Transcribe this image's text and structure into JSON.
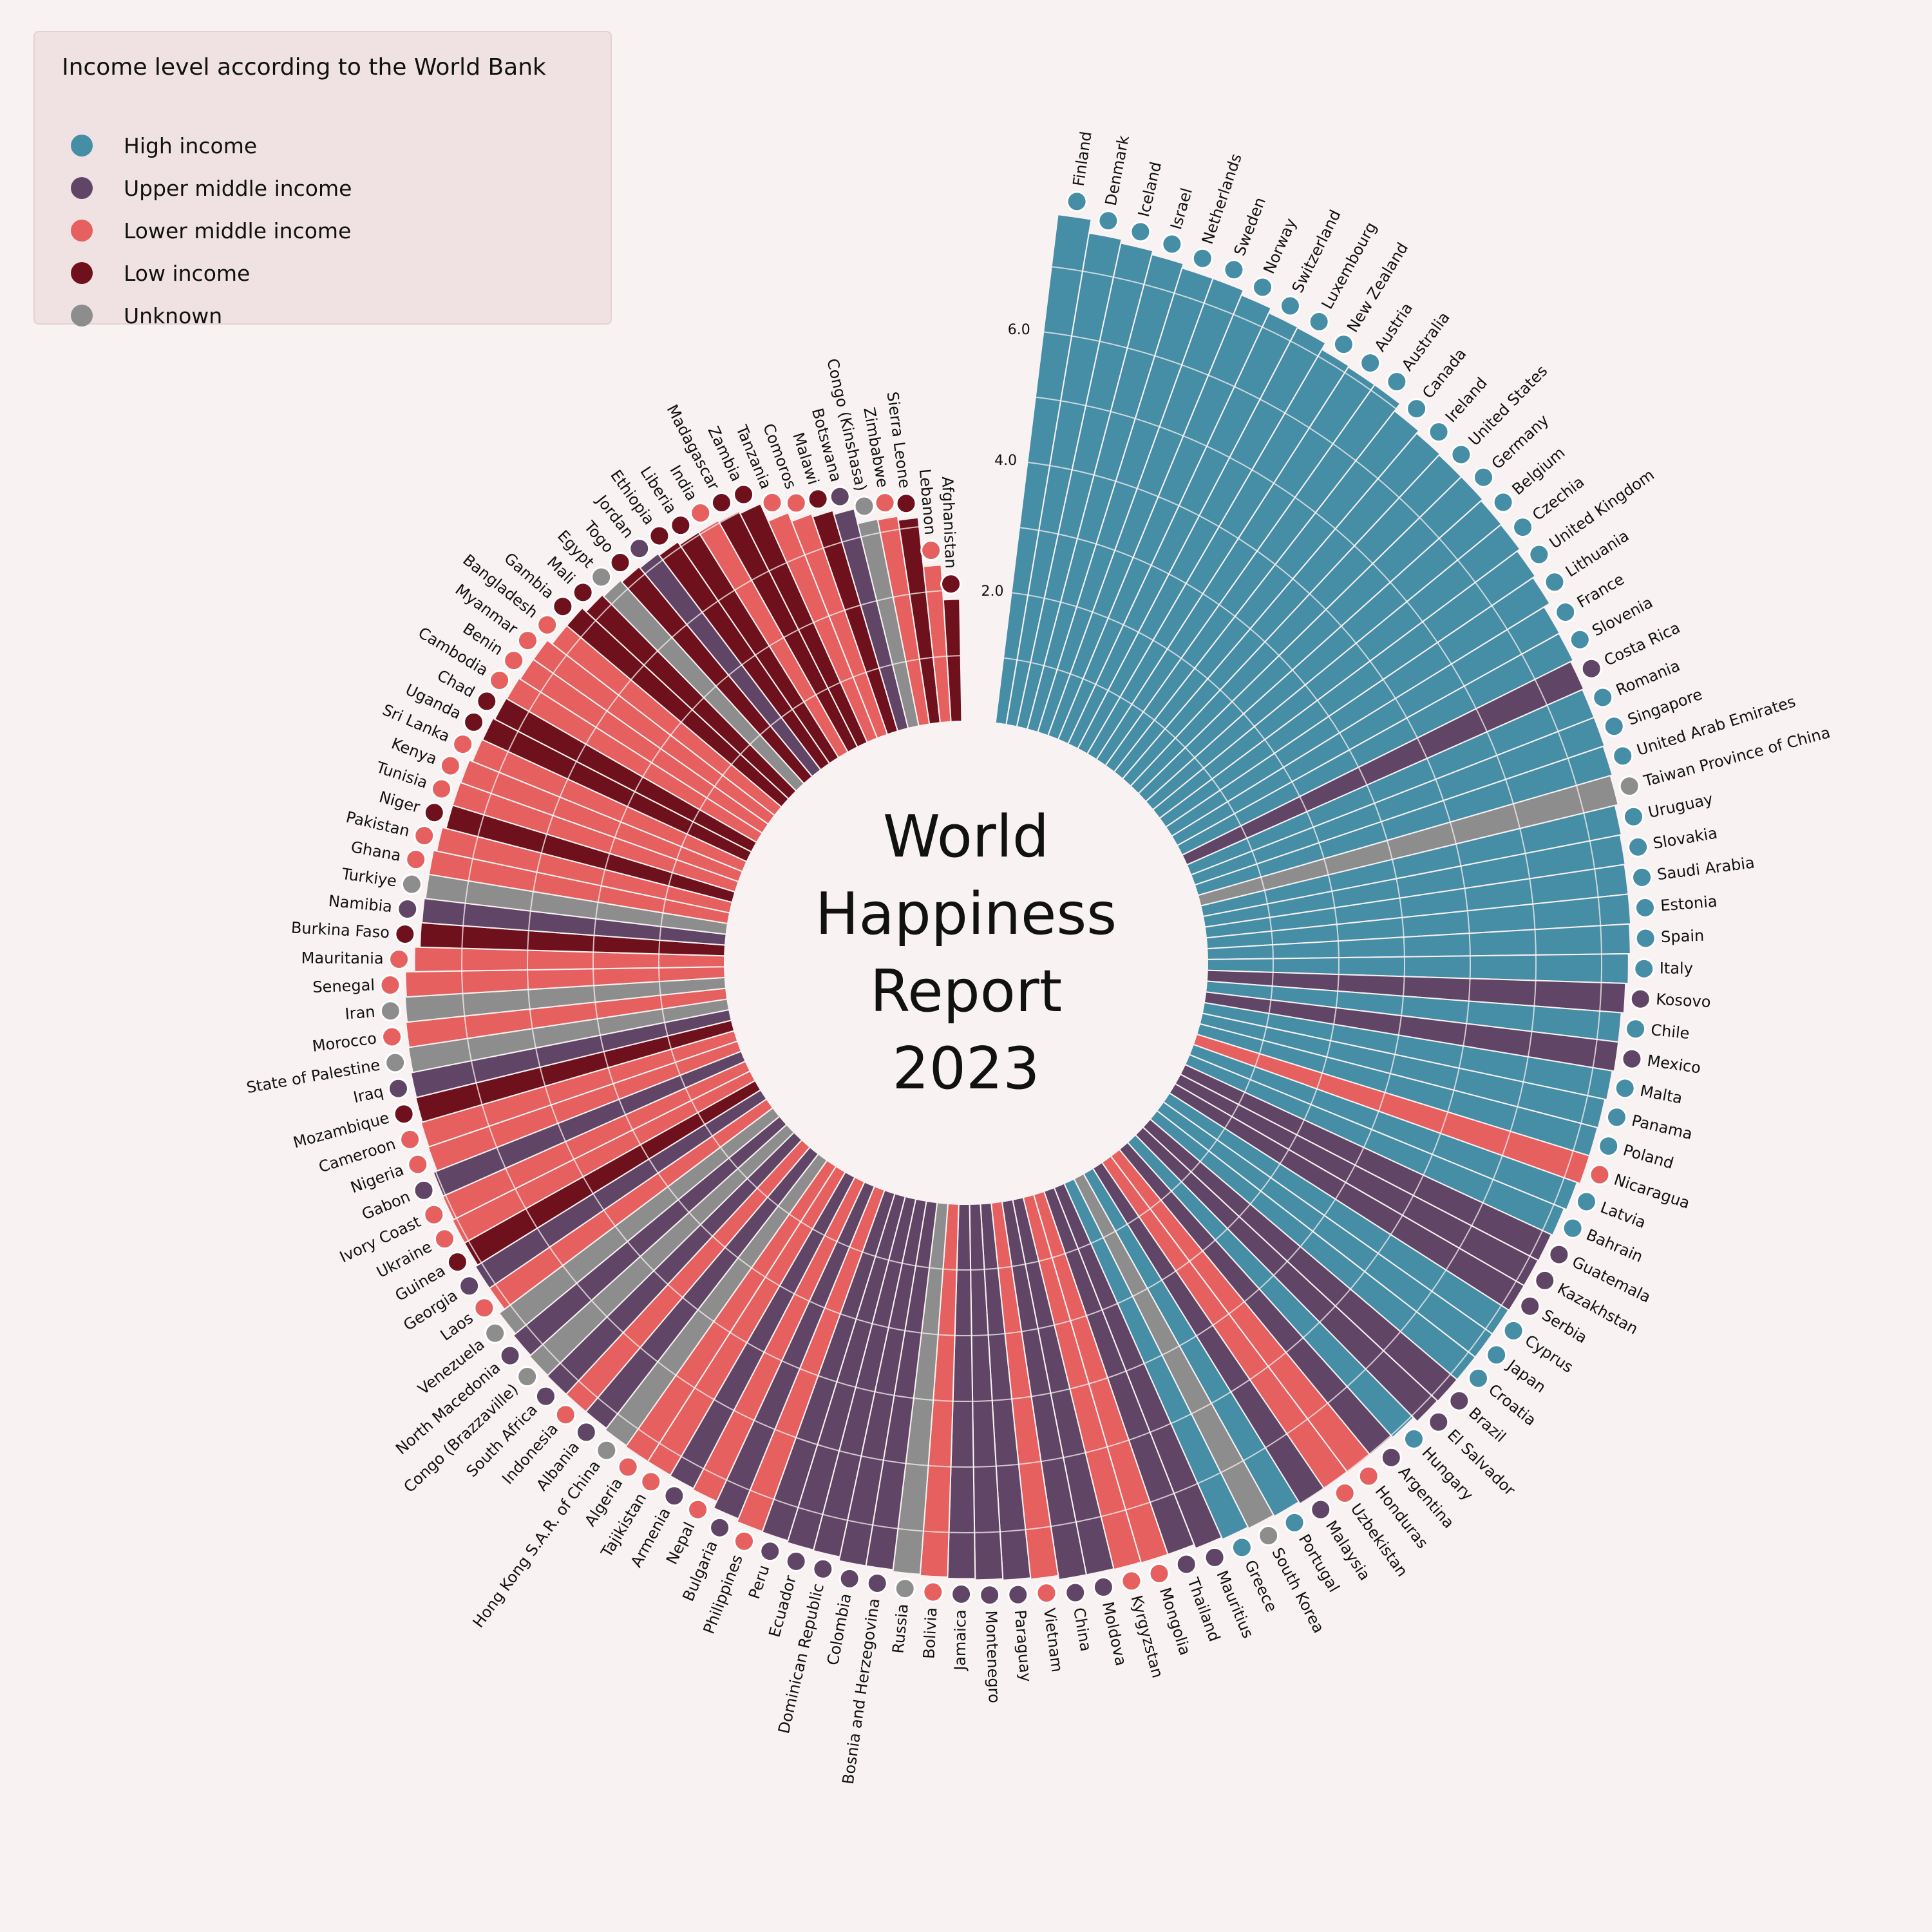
{
  "title_lines": [
    "World",
    "Happiness",
    "Report",
    "2023"
  ],
  "legend": {
    "title": "Income level according to the World Bank",
    "items": [
      {
        "key": "high",
        "label": "High income",
        "color": "#468da6"
      },
      {
        "key": "upper",
        "label": "Upper middle income",
        "color": "#614566"
      },
      {
        "key": "lower",
        "label": "Lower middle income",
        "color": "#e5605f"
      },
      {
        "key": "low",
        "label": "Low income",
        "color": "#6f111c"
      },
      {
        "key": "unknown",
        "label": "Unknown",
        "color": "#8e8d8d"
      }
    ]
  },
  "chart_data": {
    "type": "bar",
    "layout": "radial",
    "radial_ticks": [
      "2.0",
      "4.0",
      "6.0"
    ],
    "grid": true,
    "countries": [
      {
        "name": "Finland",
        "income": "high",
        "value": 7.8
      },
      {
        "name": "Denmark",
        "income": "high",
        "value": 7.59
      },
      {
        "name": "Iceland",
        "income": "high",
        "value": 7.53
      },
      {
        "name": "Israel",
        "income": "high",
        "value": 7.47
      },
      {
        "name": "Netherlands",
        "income": "high",
        "value": 7.4
      },
      {
        "name": "Sweden",
        "income": "high",
        "value": 7.4
      },
      {
        "name": "Norway",
        "income": "high",
        "value": 7.32
      },
      {
        "name": "Switzerland",
        "income": "high",
        "value": 7.24
      },
      {
        "name": "Luxembourg",
        "income": "high",
        "value": 7.23
      },
      {
        "name": "New Zealand",
        "income": "high",
        "value": 7.12
      },
      {
        "name": "Austria",
        "income": "high",
        "value": 7.1
      },
      {
        "name": "Australia",
        "income": "high",
        "value": 7.1
      },
      {
        "name": "Canada",
        "income": "high",
        "value": 6.96
      },
      {
        "name": "Ireland",
        "income": "high",
        "value": 6.91
      },
      {
        "name": "United States",
        "income": "high",
        "value": 6.89
      },
      {
        "name": "Germany",
        "income": "high",
        "value": 6.89
      },
      {
        "name": "Belgium",
        "income": "high",
        "value": 6.86
      },
      {
        "name": "Czechia",
        "income": "high",
        "value": 6.85
      },
      {
        "name": "United Kingdom",
        "income": "high",
        "value": 6.8
      },
      {
        "name": "Lithuania",
        "income": "high",
        "value": 6.76
      },
      {
        "name": "France",
        "income": "high",
        "value": 6.66
      },
      {
        "name": "Slovenia",
        "income": "high",
        "value": 6.65
      },
      {
        "name": "Costa Rica",
        "income": "upper",
        "value": 6.61
      },
      {
        "name": "Romania",
        "income": "high",
        "value": 6.59
      },
      {
        "name": "Singapore",
        "income": "high",
        "value": 6.59
      },
      {
        "name": "United Arab Emirates",
        "income": "high",
        "value": 6.57
      },
      {
        "name": "Taiwan Province of China",
        "income": "unknown",
        "value": 6.54
      },
      {
        "name": "Uruguay",
        "income": "high",
        "value": 6.49
      },
      {
        "name": "Slovakia",
        "income": "high",
        "value": 6.47
      },
      {
        "name": "Saudi Arabia",
        "income": "high",
        "value": 6.46
      },
      {
        "name": "Estonia",
        "income": "high",
        "value": 6.46
      },
      {
        "name": "Spain",
        "income": "high",
        "value": 6.44
      },
      {
        "name": "Italy",
        "income": "high",
        "value": 6.41
      },
      {
        "name": "Kosovo",
        "income": "upper",
        "value": 6.37
      },
      {
        "name": "Chile",
        "income": "high",
        "value": 6.33
      },
      {
        "name": "Mexico",
        "income": "upper",
        "value": 6.33
      },
      {
        "name": "Malta",
        "income": "high",
        "value": 6.3
      },
      {
        "name": "Panama",
        "income": "high",
        "value": 6.27
      },
      {
        "name": "Poland",
        "income": "high",
        "value": 6.26
      },
      {
        "name": "Nicaragua",
        "income": "lower",
        "value": 6.26
      },
      {
        "name": "Latvia",
        "income": "high",
        "value": 6.21
      },
      {
        "name": "Bahrain",
        "income": "high",
        "value": 6.17
      },
      {
        "name": "Guatemala",
        "income": "upper",
        "value": 6.15
      },
      {
        "name": "Kazakhstan",
        "income": "upper",
        "value": 6.14
      },
      {
        "name": "Serbia",
        "income": "upper",
        "value": 6.14
      },
      {
        "name": "Cyprus",
        "income": "high",
        "value": 6.13
      },
      {
        "name": "Japan",
        "income": "high",
        "value": 6.13
      },
      {
        "name": "Croatia",
        "income": "high",
        "value": 6.13
      },
      {
        "name": "Brazil",
        "income": "upper",
        "value": 6.13
      },
      {
        "name": "El Salvador",
        "income": "upper",
        "value": 6.12
      },
      {
        "name": "Hungary",
        "income": "high",
        "value": 6.04
      },
      {
        "name": "Argentina",
        "income": "upper",
        "value": 6.02
      },
      {
        "name": "Honduras",
        "income": "lower",
        "value": 6.02
      },
      {
        "name": "Uzbekistan",
        "income": "lower",
        "value": 6.01
      },
      {
        "name": "Malaysia",
        "income": "upper",
        "value": 6.01
      },
      {
        "name": "Portugal",
        "income": "high",
        "value": 5.97
      },
      {
        "name": "South Korea",
        "income": "unknown",
        "value": 5.95
      },
      {
        "name": "Greece",
        "income": "high",
        "value": 5.93
      },
      {
        "name": "Mauritius",
        "income": "upper",
        "value": 5.9
      },
      {
        "name": "Thailand",
        "income": "upper",
        "value": 5.84
      },
      {
        "name": "Mongolia",
        "income": "lower",
        "value": 5.84
      },
      {
        "name": "Kyrgyzstan",
        "income": "lower",
        "value": 5.83
      },
      {
        "name": "Moldova",
        "income": "upper",
        "value": 5.82
      },
      {
        "name": "China",
        "income": "upper",
        "value": 5.82
      },
      {
        "name": "Vietnam",
        "income": "lower",
        "value": 5.76
      },
      {
        "name": "Paraguay",
        "income": "upper",
        "value": 5.74
      },
      {
        "name": "Montenegro",
        "income": "upper",
        "value": 5.72
      },
      {
        "name": "Jamaica",
        "income": "upper",
        "value": 5.7
      },
      {
        "name": "Bolivia",
        "income": "lower",
        "value": 5.68
      },
      {
        "name": "Russia",
        "income": "unknown",
        "value": 5.66
      },
      {
        "name": "Bosnia and Herzegovina",
        "income": "upper",
        "value": 5.63
      },
      {
        "name": "Colombia",
        "income": "upper",
        "value": 5.63
      },
      {
        "name": "Dominican Republic",
        "income": "upper",
        "value": 5.57
      },
      {
        "name": "Ecuador",
        "income": "upper",
        "value": 5.56
      },
      {
        "name": "Peru",
        "income": "upper",
        "value": 5.53
      },
      {
        "name": "Philippines",
        "income": "lower",
        "value": 5.52
      },
      {
        "name": "Bulgaria",
        "income": "upper",
        "value": 5.47
      },
      {
        "name": "Nepal",
        "income": "lower",
        "value": 5.36
      },
      {
        "name": "Armenia",
        "income": "upper",
        "value": 5.34
      },
      {
        "name": "Tajikistan",
        "income": "lower",
        "value": 5.33
      },
      {
        "name": "Algeria",
        "income": "lower",
        "value": 5.33
      },
      {
        "name": "Hong Kong S.A.R. of China",
        "income": "unknown",
        "value": 5.31
      },
      {
        "name": "Albania",
        "income": "upper",
        "value": 5.28
      },
      {
        "name": "Indonesia",
        "income": "lower",
        "value": 5.28
      },
      {
        "name": "South Africa",
        "income": "upper",
        "value": 5.28
      },
      {
        "name": "Congo (Brazzaville)",
        "income": "unknown",
        "value": 5.27
      },
      {
        "name": "North Macedonia",
        "income": "upper",
        "value": 5.25
      },
      {
        "name": "Venezuela",
        "income": "unknown",
        "value": 5.21
      },
      {
        "name": "Laos",
        "income": "lower",
        "value": 5.11
      },
      {
        "name": "Georgia",
        "income": "upper",
        "value": 5.11
      },
      {
        "name": "Guinea",
        "income": "low",
        "value": 5.07
      },
      {
        "name": "Ukraine",
        "income": "lower",
        "value": 5.07
      },
      {
        "name": "Ivory Coast",
        "income": "lower",
        "value": 5.05
      },
      {
        "name": "Gabon",
        "income": "upper",
        "value": 5.04
      },
      {
        "name": "Nigeria",
        "income": "lower",
        "value": 4.98
      },
      {
        "name": "Cameroon",
        "income": "lower",
        "value": 4.97
      },
      {
        "name": "Mozambique",
        "income": "low",
        "value": 4.95
      },
      {
        "name": "Iraq",
        "income": "upper",
        "value": 4.94
      },
      {
        "name": "State of Palestine",
        "income": "unknown",
        "value": 4.91
      },
      {
        "name": "Morocco",
        "income": "lower",
        "value": 4.9
      },
      {
        "name": "Iran",
        "income": "unknown",
        "value": 4.88
      },
      {
        "name": "Senegal",
        "income": "lower",
        "value": 4.86
      },
      {
        "name": "Mauritania",
        "income": "lower",
        "value": 4.72
      },
      {
        "name": "Burkina Faso",
        "income": "low",
        "value": 4.64
      },
      {
        "name": "Namibia",
        "income": "upper",
        "value": 4.63
      },
      {
        "name": "Turkiye",
        "income": "unknown",
        "value": 4.61
      },
      {
        "name": "Ghana",
        "income": "lower",
        "value": 4.61
      },
      {
        "name": "Pakistan",
        "income": "lower",
        "value": 4.56
      },
      {
        "name": "Niger",
        "income": "low",
        "value": 4.5
      },
      {
        "name": "Tunisia",
        "income": "lower",
        "value": 4.5
      },
      {
        "name": "Kenya",
        "income": "lower",
        "value": 4.49
      },
      {
        "name": "Sri Lanka",
        "income": "lower",
        "value": 4.44
      },
      {
        "name": "Uganda",
        "income": "low",
        "value": 4.43
      },
      {
        "name": "Chad",
        "income": "low",
        "value": 4.4
      },
      {
        "name": "Cambodia",
        "income": "lower",
        "value": 4.39
      },
      {
        "name": "Benin",
        "income": "lower",
        "value": 4.37
      },
      {
        "name": "Myanmar",
        "income": "lower",
        "value": 4.37
      },
      {
        "name": "Bangladesh",
        "income": "lower",
        "value": 4.28
      },
      {
        "name": "Gambia",
        "income": "low",
        "value": 4.28
      },
      {
        "name": "Mali",
        "income": "low",
        "value": 4.2
      },
      {
        "name": "Egypt",
        "income": "unknown",
        "value": 4.17
      },
      {
        "name": "Togo",
        "income": "low",
        "value": 4.14
      },
      {
        "name": "Jordan",
        "income": "upper",
        "value": 4.12
      },
      {
        "name": "Ethiopia",
        "income": "low",
        "value": 4.09
      },
      {
        "name": "Liberia",
        "income": "low",
        "value": 4.04
      },
      {
        "name": "India",
        "income": "lower",
        "value": 4.04
      },
      {
        "name": "Madagascar",
        "income": "low",
        "value": 4.02
      },
      {
        "name": "Zambia",
        "income": "low",
        "value": 3.98
      },
      {
        "name": "Tanzania",
        "income": "lower",
        "value": 3.69
      },
      {
        "name": "Comoros",
        "income": "lower",
        "value": 3.55
      },
      {
        "name": "Malawi",
        "income": "low",
        "value": 3.5
      },
      {
        "name": "Botswana",
        "income": "upper",
        "value": 3.44
      },
      {
        "name": "Congo (Kinshasa)",
        "income": "unknown",
        "value": 3.21
      },
      {
        "name": "Zimbabwe",
        "income": "lower",
        "value": 3.2
      },
      {
        "name": "Sierra Leone",
        "income": "low",
        "value": 3.14
      },
      {
        "name": "Lebanon",
        "income": "lower",
        "value": 2.39
      },
      {
        "name": "Afghanistan",
        "income": "low",
        "value": 1.86
      }
    ]
  }
}
